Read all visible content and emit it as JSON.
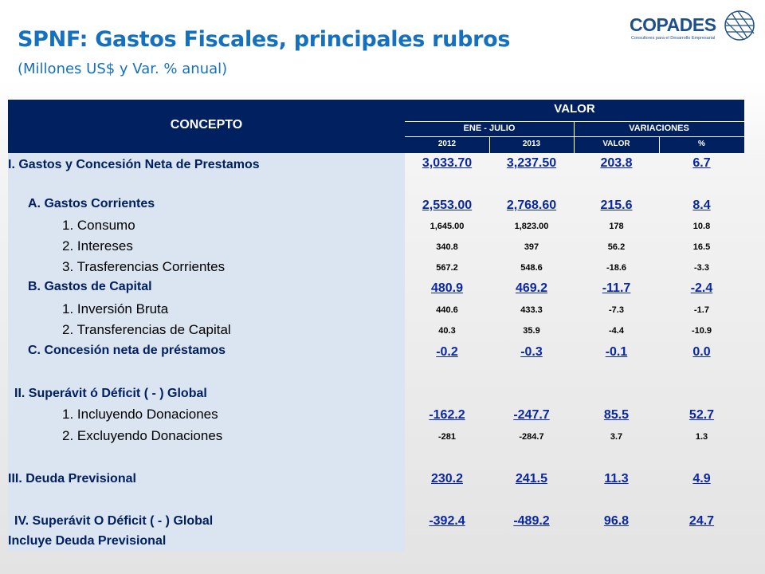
{
  "header": {
    "title": "SPNF: Gastos Fiscales, principales rubros",
    "subtitle": "(Millones US$ y Var. % anual)"
  },
  "logo": {
    "name": "COPADES",
    "tagline": "Consultores para el Desarrollo Empresarial",
    "icon": "globe-icon"
  },
  "table": {
    "concept_header": "CONCEPTO",
    "value_header": "VALOR",
    "period_header": "ENE - JULIO",
    "variation_header": "VARIACIONES",
    "columns": [
      "2012",
      "2013",
      "VALOR",
      "%"
    ],
    "rows": [
      {
        "label": "I. Gastos y Concesión Neta de Prestamos",
        "values": [
          "3,033.70",
          "3,237.50",
          "203.8",
          "6.7"
        ]
      },
      {
        "label": "A. Gastos Corrientes",
        "values": [
          "2,553.00",
          "2,768.60",
          "215.6",
          "8.4"
        ]
      },
      {
        "label": "1. Consumo",
        "values": [
          "1,645.00",
          "1,823.00",
          "178",
          "10.8"
        ]
      },
      {
        "label": "2. Intereses",
        "values": [
          "340.8",
          "397",
          "56.2",
          "16.5"
        ]
      },
      {
        "label": "3. Trasferencias Corrientes",
        "values": [
          "567.2",
          "548.6",
          "-18.6",
          "-3.3"
        ]
      },
      {
        "label": "B. Gastos de Capital",
        "values": [
          "480.9",
          "469.2",
          "-11.7",
          "-2.4"
        ]
      },
      {
        "label": "1. Inversión Bruta",
        "values": [
          "440.6",
          "433.3",
          "-7.3",
          "-1.7"
        ]
      },
      {
        "label": "2. Transferencias de Capital",
        "values": [
          "40.3",
          "35.9",
          "-4.4",
          "-10.9"
        ]
      },
      {
        "label": "C. Concesión neta de préstamos",
        "values": [
          "-0.2",
          "-0.3",
          "-0.1",
          "0.0"
        ]
      },
      {
        "label": "II. Superávit ó Déficit ( - ) Global",
        "values": [
          "",
          "",
          "",
          ""
        ]
      },
      {
        "label": "1. Incluyendo Donaciones",
        "values": [
          "-162.2",
          "-247.7",
          "85.5",
          "52.7"
        ]
      },
      {
        "label": "2. Excluyendo Donaciones",
        "values": [
          "-281",
          "-284.7",
          "3.7",
          "1.3"
        ]
      },
      {
        "label": "III. Deuda Previsional",
        "values": [
          "230.2",
          "241.5",
          "11.3",
          "4.9"
        ]
      },
      {
        "label": "IV. Superávit O Déficit ( - ) Global",
        "values": [
          "-392.4",
          "-489.2",
          "96.8",
          "24.7"
        ]
      },
      {
        "label": "Incluye Deuda Previsional",
        "values": [
          "",
          "",
          "",
          ""
        ]
      }
    ]
  }
}
